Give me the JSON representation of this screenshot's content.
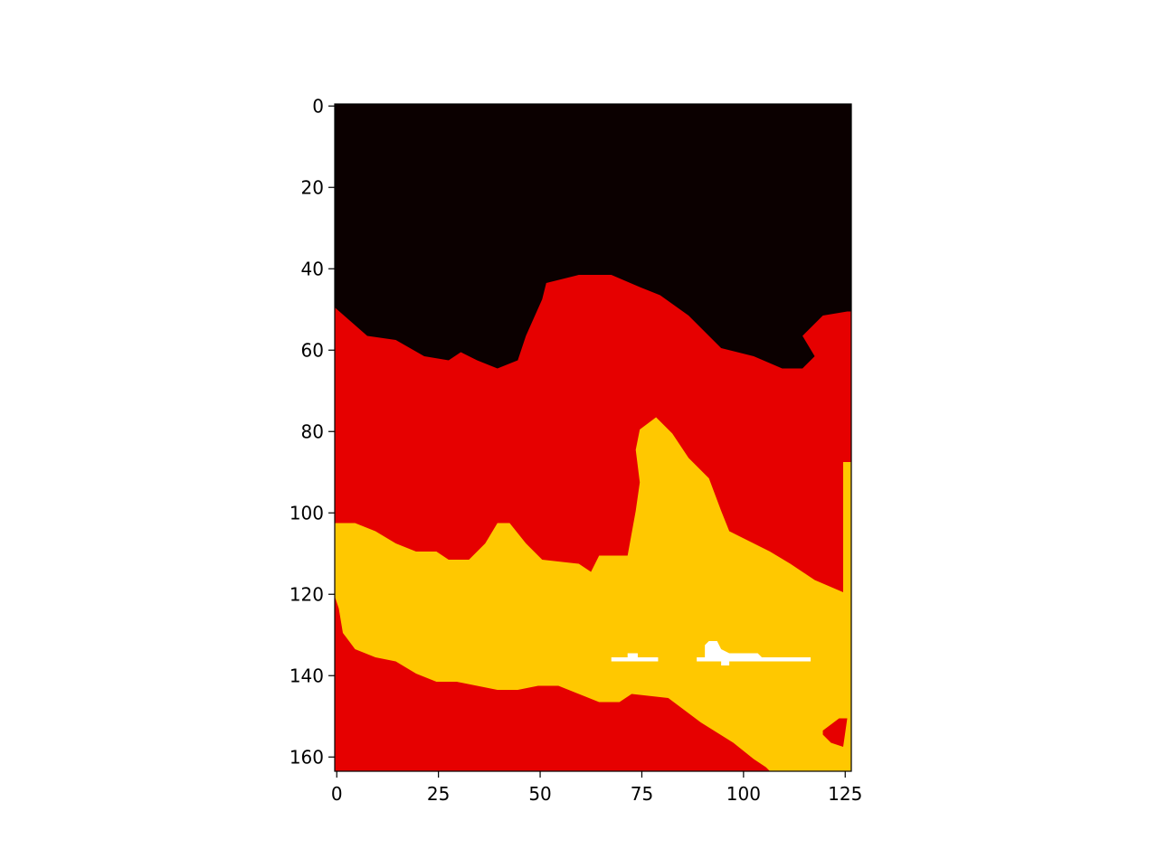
{
  "chart_data": {
    "type": "heatmap",
    "title": "",
    "xlabel": "",
    "ylabel": "",
    "grid": false,
    "legend": "none",
    "xlim": [
      -0.5,
      126.5
    ],
    "ylim": [
      163.5,
      -0.5
    ],
    "y_inverted": true,
    "columns": 127,
    "rows": 164,
    "x_ticks": [
      0,
      25,
      50,
      75,
      100,
      125
    ],
    "y_ticks": [
      0,
      20,
      40,
      60,
      80,
      100,
      120,
      140,
      160
    ],
    "colormap": [
      "#0b0000",
      "#e60000",
      "#ffc800",
      "#ffffff"
    ],
    "classes": [
      {
        "value": 0,
        "color": "#0b0000"
      },
      {
        "value": 1,
        "color": "#e60000"
      },
      {
        "value": 2,
        "color": "#ffc800"
      },
      {
        "value": 3,
        "color": "#ffffff"
      }
    ],
    "region_boundaries": {
      "black_red": [
        [
          0,
          50
        ],
        [
          8,
          57
        ],
        [
          15,
          58
        ],
        [
          22,
          62
        ],
        [
          28,
          63
        ],
        [
          31,
          61
        ],
        [
          35,
          63
        ],
        [
          40,
          65
        ],
        [
          45,
          63
        ],
        [
          47,
          57
        ],
        [
          51,
          48
        ],
        [
          52,
          44
        ],
        [
          60,
          42
        ],
        [
          68,
          42
        ],
        [
          75,
          45
        ],
        [
          80,
          47
        ],
        [
          87,
          52
        ],
        [
          95,
          60
        ],
        [
          103,
          62
        ],
        [
          110,
          65
        ],
        [
          115,
          65
        ],
        [
          118,
          62
        ],
        [
          115,
          57
        ],
        [
          120,
          52
        ],
        [
          126,
          51
        ]
      ],
      "red_yellow_top": [
        [
          0,
          103
        ],
        [
          5,
          103
        ],
        [
          10,
          105
        ],
        [
          15,
          108
        ],
        [
          20,
          110
        ],
        [
          25,
          110
        ],
        [
          28,
          112
        ],
        [
          33,
          112
        ],
        [
          37,
          108
        ],
        [
          40,
          103
        ],
        [
          43,
          103
        ],
        [
          47,
          108
        ],
        [
          51,
          112
        ],
        [
          60,
          113
        ],
        [
          63,
          115
        ],
        [
          65,
          111
        ],
        [
          72,
          111
        ],
        [
          74,
          100
        ],
        [
          75,
          93
        ],
        [
          74,
          85
        ],
        [
          75,
          80
        ],
        [
          79,
          77
        ],
        [
          83,
          81
        ],
        [
          87,
          87
        ],
        [
          92,
          92
        ],
        [
          95,
          100
        ],
        [
          97,
          105
        ],
        [
          103,
          108
        ],
        [
          107,
          110
        ],
        [
          112,
          113
        ],
        [
          118,
          117
        ],
        [
          125,
          120
        ],
        [
          125,
          88
        ],
        [
          126,
          88
        ]
      ],
      "yellow_red_bottom": [
        [
          0,
          121
        ],
        [
          1,
          124
        ],
        [
          2,
          130
        ],
        [
          5,
          134
        ],
        [
          10,
          136
        ],
        [
          15,
          137
        ],
        [
          20,
          140
        ],
        [
          25,
          142
        ],
        [
          30,
          142
        ],
        [
          35,
          143
        ],
        [
          40,
          144
        ],
        [
          45,
          144
        ],
        [
          50,
          143
        ],
        [
          55,
          143
        ],
        [
          60,
          145
        ],
        [
          65,
          147
        ],
        [
          70,
          147
        ],
        [
          73,
          145
        ],
        [
          82,
          146
        ],
        [
          90,
          152
        ],
        [
          98,
          157
        ],
        [
          103,
          161
        ],
        [
          106,
          163
        ],
        [
          107,
          164
        ]
      ],
      "red_patch_right": [
        [
          120,
          154
        ],
        [
          124,
          151
        ],
        [
          126,
          151
        ],
        [
          125,
          158
        ],
        [
          122,
          157
        ],
        [
          120,
          155
        ]
      ]
    },
    "white_streaks": [
      {
        "x": [
          68,
          79
        ],
        "y": 136
      },
      {
        "x": [
          89,
          117
        ],
        "y": [
          132,
          137
        ]
      }
    ]
  }
}
